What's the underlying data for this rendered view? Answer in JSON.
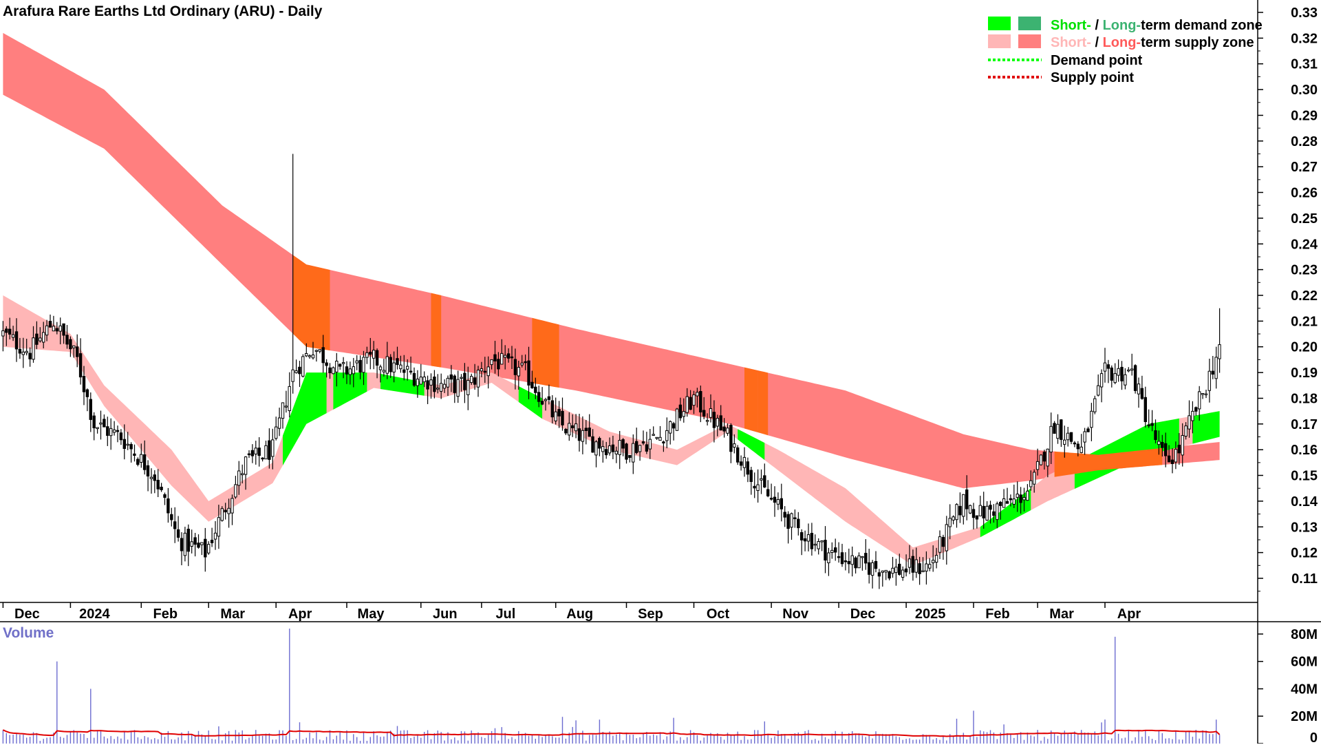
{
  "chart_data": {
    "type": "candlestick",
    "title": "Arafura Rare Earths Ltd Ordinary (ARU) - Daily",
    "volume_label": "Volume",
    "x_tick_labels": [
      "Dec",
      "2024",
      "Feb",
      "Mar",
      "Apr",
      "May",
      "Jun",
      "Jul",
      "Aug",
      "Sep",
      "Oct",
      "Nov",
      "Dec",
      "2025",
      "Feb",
      "Mar",
      "Apr"
    ],
    "y_tick_labels": [
      "0.33",
      "0.32",
      "0.31",
      "0.30",
      "0.29",
      "0.28",
      "0.27",
      "0.26",
      "0.25",
      "0.24",
      "0.23",
      "0.22",
      "0.21",
      "0.20",
      "0.19",
      "0.18",
      "0.17",
      "0.16",
      "0.15",
      "0.14",
      "0.13",
      "0.12",
      "0.11"
    ],
    "ylim": [
      0.1,
      0.335
    ],
    "volume_tick_labels": [
      "80M",
      "60M",
      "40M",
      "20M",
      "0"
    ],
    "volume_ylim": [
      0,
      85
    ],
    "legend": {
      "row1": {
        "short": "Short-",
        "sep": " / ",
        "long": "Long-",
        "rest": "term demand zone"
      },
      "row2": {
        "short": "Short-",
        "sep": " / ",
        "long": "Long-",
        "rest": "term supply zone"
      },
      "row3": "Demand point",
      "row4": "Supply point"
    },
    "colors": {
      "long_supply": "#ff7f7f",
      "short_supply": "#ffb6b6",
      "short_demand": "#00ff00",
      "long_demand": "#3cb371",
      "overlap": "#ff6a1a",
      "candle": "#000000",
      "volume_bar": "#6b6bd0",
      "volume_ma": "#e00000",
      "demand_green_text": "#00e000",
      "long_red_text": "#ff5a5a",
      "short_pink_text": "#ffb6b6"
    },
    "months_index": [
      0,
      20,
      41,
      61,
      81,
      102,
      124,
      142,
      164,
      185,
      205,
      228,
      248,
      268,
      288,
      307,
      327
    ],
    "n_days": 362,
    "price_knots": [
      [
        0,
        0.205
      ],
      [
        8,
        0.198
      ],
      [
        15,
        0.21
      ],
      [
        22,
        0.195
      ],
      [
        27,
        0.17
      ],
      [
        35,
        0.165
      ],
      [
        45,
        0.15
      ],
      [
        52,
        0.125
      ],
      [
        60,
        0.12
      ],
      [
        65,
        0.135
      ],
      [
        72,
        0.155
      ],
      [
        80,
        0.16
      ],
      [
        86,
        0.19
      ],
      [
        92,
        0.2
      ],
      [
        100,
        0.19
      ],
      [
        110,
        0.195
      ],
      [
        120,
        0.19
      ],
      [
        130,
        0.185
      ],
      [
        138,
        0.185
      ],
      [
        145,
        0.195
      ],
      [
        155,
        0.19
      ],
      [
        165,
        0.17
      ],
      [
        175,
        0.163
      ],
      [
        185,
        0.16
      ],
      [
        195,
        0.165
      ],
      [
        205,
        0.18
      ],
      [
        215,
        0.165
      ],
      [
        225,
        0.145
      ],
      [
        235,
        0.13
      ],
      [
        245,
        0.12
      ],
      [
        255,
        0.115
      ],
      [
        265,
        0.113
      ],
      [
        275,
        0.115
      ],
      [
        285,
        0.14
      ],
      [
        290,
        0.135
      ],
      [
        300,
        0.14
      ],
      [
        305,
        0.145
      ],
      [
        312,
        0.17
      ],
      [
        320,
        0.16
      ],
      [
        327,
        0.19
      ],
      [
        335,
        0.19
      ],
      [
        340,
        0.17
      ],
      [
        345,
        0.155
      ],
      [
        349,
        0.16
      ],
      [
        352,
        0.17
      ],
      [
        357,
        0.185
      ],
      [
        361,
        0.2
      ]
    ],
    "long_supply_top": [
      [
        0,
        0.322
      ],
      [
        30,
        0.3
      ],
      [
        65,
        0.255
      ],
      [
        90,
        0.232
      ],
      [
        130,
        0.22
      ],
      [
        170,
        0.207
      ],
      [
        210,
        0.195
      ],
      [
        250,
        0.183
      ],
      [
        285,
        0.166
      ],
      [
        305,
        0.16
      ],
      [
        325,
        0.158
      ],
      [
        361,
        0.163
      ]
    ],
    "long_supply_bottom": [
      [
        0,
        0.298
      ],
      [
        30,
        0.277
      ],
      [
        65,
        0.232
      ],
      [
        90,
        0.2
      ],
      [
        130,
        0.192
      ],
      [
        170,
        0.183
      ],
      [
        210,
        0.172
      ],
      [
        250,
        0.157
      ],
      [
        285,
        0.145
      ],
      [
        305,
        0.148
      ],
      [
        325,
        0.152
      ],
      [
        361,
        0.156
      ]
    ],
    "short_supply_top": [
      [
        0,
        0.22
      ],
      [
        20,
        0.205
      ],
      [
        30,
        0.185
      ],
      [
        50,
        0.16
      ],
      [
        61,
        0.14
      ],
      [
        80,
        0.155
      ],
      [
        90,
        0.19
      ],
      [
        110,
        0.19
      ],
      [
        130,
        0.185
      ],
      [
        145,
        0.19
      ],
      [
        160,
        0.18
      ],
      [
        180,
        0.167
      ],
      [
        200,
        0.16
      ],
      [
        215,
        0.17
      ],
      [
        230,
        0.16
      ],
      [
        250,
        0.145
      ],
      [
        270,
        0.122
      ],
      [
        290,
        0.13
      ],
      [
        310,
        0.15
      ],
      [
        340,
        0.17
      ],
      [
        361,
        0.175
      ]
    ],
    "short_supply_bottom": [
      [
        0,
        0.2
      ],
      [
        20,
        0.198
      ],
      [
        30,
        0.177
      ],
      [
        50,
        0.146
      ],
      [
        61,
        0.132
      ],
      [
        80,
        0.147
      ],
      [
        90,
        0.17
      ],
      [
        110,
        0.184
      ],
      [
        130,
        0.18
      ],
      [
        145,
        0.186
      ],
      [
        160,
        0.172
      ],
      [
        180,
        0.16
      ],
      [
        200,
        0.154
      ],
      [
        215,
        0.167
      ],
      [
        230,
        0.152
      ],
      [
        250,
        0.132
      ],
      [
        270,
        0.115
      ],
      [
        290,
        0.126
      ],
      [
        310,
        0.14
      ],
      [
        340,
        0.158
      ],
      [
        361,
        0.165
      ]
    ],
    "demand_short_ranges": [
      [
        83,
        96
      ],
      [
        98,
        108
      ],
      [
        112,
        125
      ],
      [
        153,
        160
      ],
      [
        218,
        226
      ],
      [
        290,
        305
      ],
      [
        318,
        349
      ],
      [
        353,
        361
      ]
    ],
    "overlap_ranges": [
      [
        86,
        97
      ],
      [
        127,
        130
      ],
      [
        157,
        165
      ],
      [
        220,
        224
      ],
      [
        224,
        227
      ],
      [
        312,
        344
      ]
    ],
    "volume_spike_indices": [
      16,
      26,
      85,
      148,
      288,
      330
    ],
    "volume_spike_values_m": [
      60,
      40,
      84,
      12,
      24,
      78
    ]
  }
}
